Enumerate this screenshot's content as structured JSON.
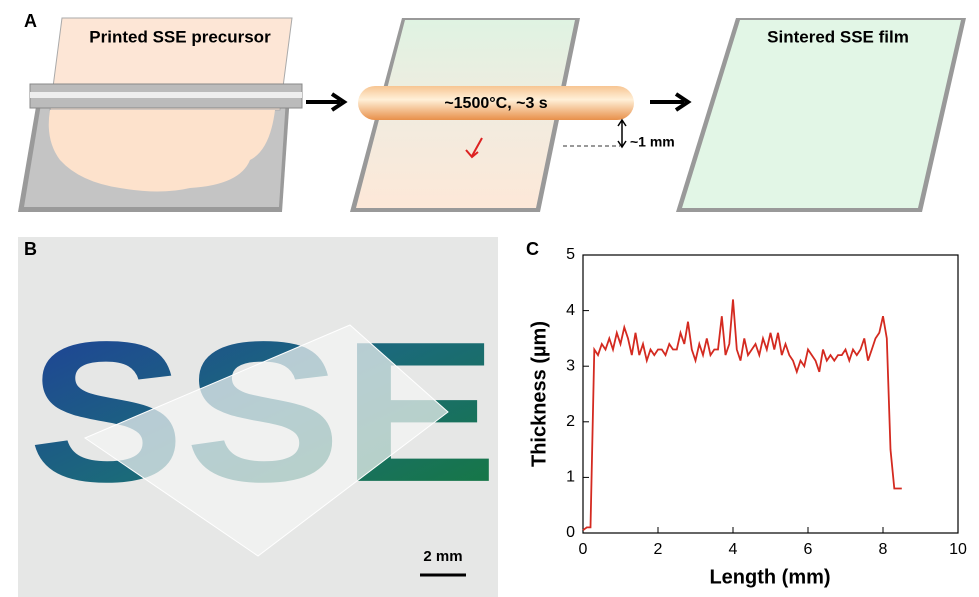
{
  "panel_a": {
    "label": "A",
    "step1": "Printed SSE precursor",
    "step2": "~1500°C, ~3 s",
    "gap": "~1 mm",
    "step3": "Sintered SSE film"
  },
  "panel_b": {
    "label": "B",
    "photo_text": "SSE",
    "scale_bar": "2 mm"
  },
  "chart_data": {
    "type": "line",
    "panel_label": "C",
    "xlabel": "Length (mm)",
    "ylabel": "Thickness (µm)",
    "xlim": [
      0,
      10
    ],
    "ylim": [
      0,
      5
    ],
    "xticks": [
      0,
      2,
      4,
      6,
      8,
      10
    ],
    "yticks": [
      0,
      1,
      2,
      3,
      4,
      5
    ],
    "color": "#d42a20",
    "x": [
      0,
      0.1,
      0.2,
      0.3,
      0.4,
      0.5,
      0.6,
      0.7,
      0.8,
      0.9,
      1.0,
      1.1,
      1.2,
      1.3,
      1.4,
      1.5,
      1.6,
      1.7,
      1.8,
      1.9,
      2.0,
      2.1,
      2.2,
      2.3,
      2.4,
      2.5,
      2.6,
      2.7,
      2.8,
      2.9,
      3.0,
      3.1,
      3.2,
      3.3,
      3.4,
      3.5,
      3.6,
      3.7,
      3.8,
      3.9,
      4.0,
      4.1,
      4.2,
      4.3,
      4.4,
      4.5,
      4.6,
      4.7,
      4.8,
      4.9,
      5.0,
      5.1,
      5.2,
      5.3,
      5.4,
      5.5,
      5.6,
      5.7,
      5.8,
      5.9,
      6.0,
      6.1,
      6.2,
      6.3,
      6.4,
      6.5,
      6.6,
      6.7,
      6.8,
      6.9,
      7.0,
      7.1,
      7.2,
      7.3,
      7.4,
      7.5,
      7.6,
      7.7,
      7.8,
      7.9,
      8.0,
      8.1,
      8.2,
      8.3,
      8.4,
      8.5
    ],
    "values": [
      0.05,
      0.1,
      0.1,
      3.3,
      3.2,
      3.4,
      3.3,
      3.5,
      3.3,
      3.6,
      3.4,
      3.7,
      3.5,
      3.2,
      3.6,
      3.2,
      3.4,
      3.1,
      3.3,
      3.2,
      3.3,
      3.3,
      3.2,
      3.4,
      3.3,
      3.3,
      3.6,
      3.4,
      3.8,
      3.3,
      3.1,
      3.4,
      3.2,
      3.5,
      3.2,
      3.3,
      3.3,
      3.9,
      3.2,
      3.4,
      4.2,
      3.3,
      3.1,
      3.5,
      3.2,
      3.3,
      3.4,
      3.2,
      3.5,
      3.3,
      3.6,
      3.3,
      3.6,
      3.2,
      3.4,
      3.2,
      3.1,
      2.9,
      3.1,
      3.0,
      3.3,
      3.2,
      3.1,
      2.9,
      3.3,
      3.1,
      3.2,
      3.1,
      3.2,
      3.2,
      3.3,
      3.1,
      3.3,
      3.2,
      3.3,
      3.5,
      3.1,
      3.3,
      3.5,
      3.6,
      3.9,
      3.5,
      1.5,
      0.8,
      0.8,
      0.8
    ]
  }
}
